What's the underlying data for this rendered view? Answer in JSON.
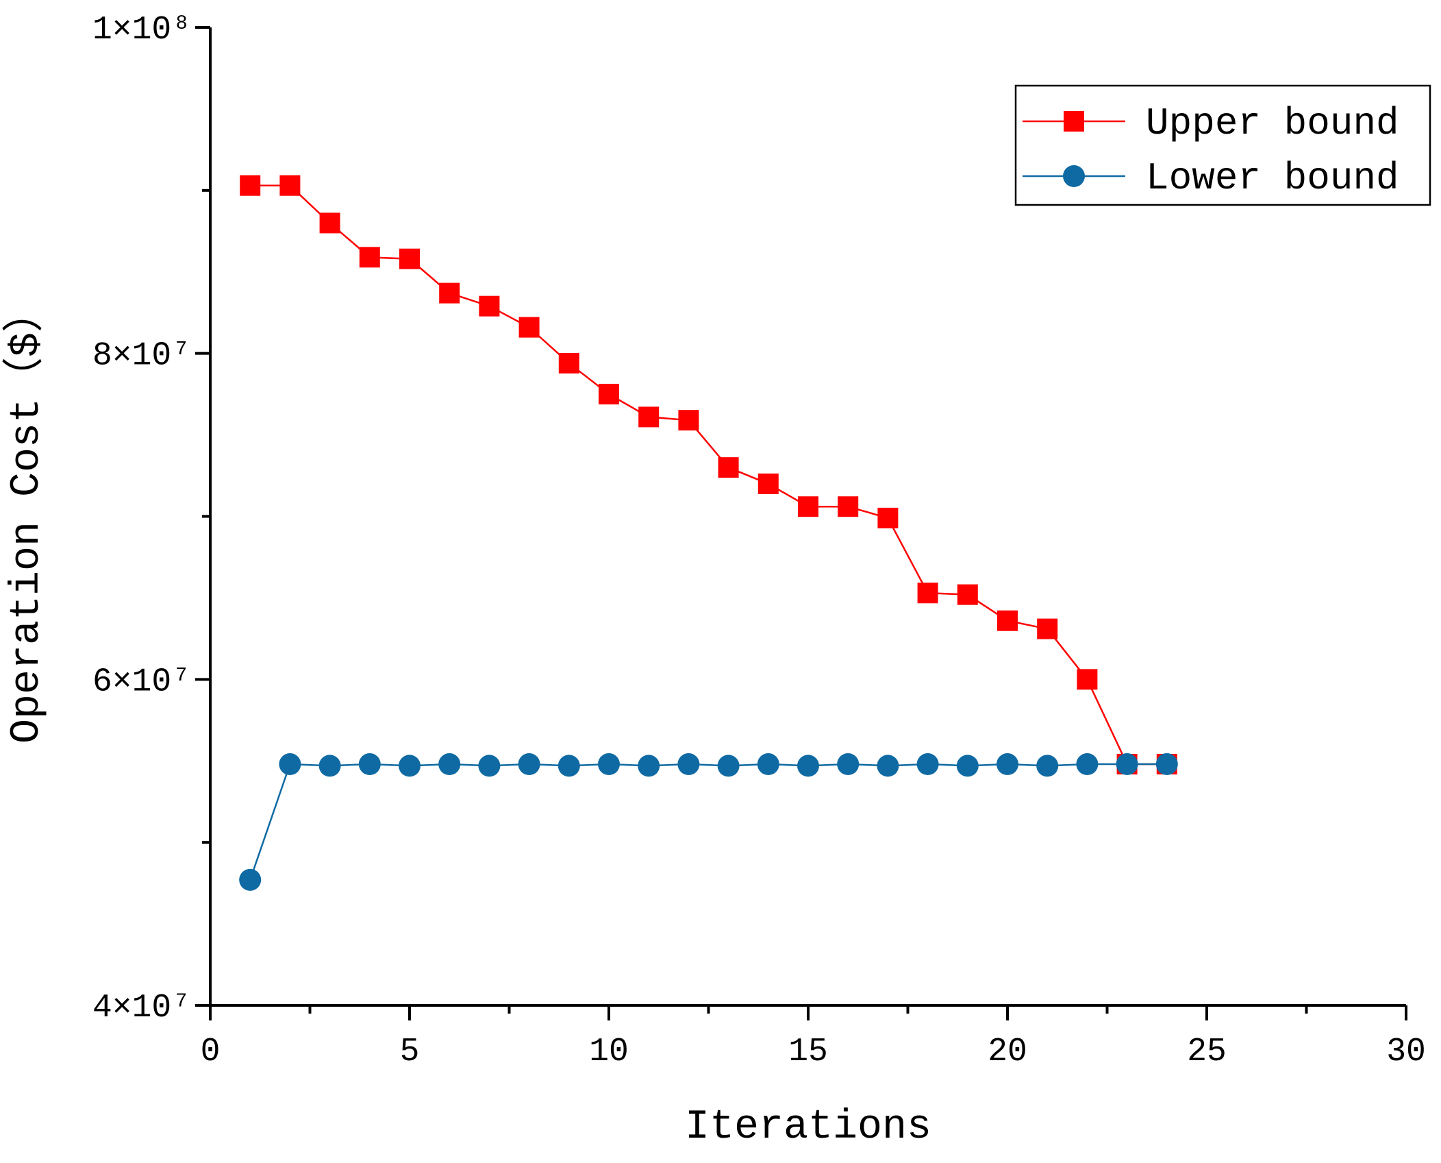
{
  "chart_data": {
    "type": "line",
    "xlabel": "Iterations",
    "ylabel": "Operation Cost（$）",
    "xlim": [
      0,
      30
    ],
    "xticks": [
      0,
      5,
      10,
      15,
      20,
      25,
      30
    ],
    "xminorticks": [
      2.5,
      7.5,
      12.5,
      17.5,
      22.5,
      27.5
    ],
    "ylim": [
      40000000,
      100000000
    ],
    "yticks": [
      {
        "value": 40000000,
        "label": "4×10⁷"
      },
      {
        "value": 60000000,
        "label": "6×10⁷"
      },
      {
        "value": 80000000,
        "label": "8×10⁷"
      },
      {
        "value": 100000000,
        "label": "1×10⁸"
      }
    ],
    "yminorticks": [
      50000000,
      70000000,
      90000000
    ],
    "legend": "upper right",
    "x": [
      1,
      2,
      3,
      4,
      5,
      6,
      7,
      8,
      9,
      10,
      11,
      12,
      13,
      14,
      15,
      16,
      17,
      18,
      19,
      20,
      21,
      22,
      23,
      24
    ],
    "series": [
      {
        "name": "Upper bound",
        "color": "#ff0000",
        "marker": "square",
        "values": [
          90300000,
          90300000,
          88000000,
          85900000,
          85800000,
          83700000,
          82900000,
          81600000,
          79400000,
          77500000,
          76100000,
          75900000,
          73000000,
          72000000,
          70600000,
          70600000,
          69900000,
          65300000,
          65200000,
          63600000,
          63100000,
          60000000,
          54800000,
          54800000
        ]
      },
      {
        "name": "Lower bound",
        "color": "#0f6aa3",
        "marker": "circle",
        "values": [
          47700000,
          54800000,
          54700000,
          54800000,
          54700000,
          54800000,
          54700000,
          54800000,
          54700000,
          54800000,
          54700000,
          54800000,
          54700000,
          54800000,
          54700000,
          54800000,
          54700000,
          54800000,
          54700000,
          54800000,
          54700000,
          54800000,
          54800000,
          54800000
        ]
      }
    ]
  }
}
